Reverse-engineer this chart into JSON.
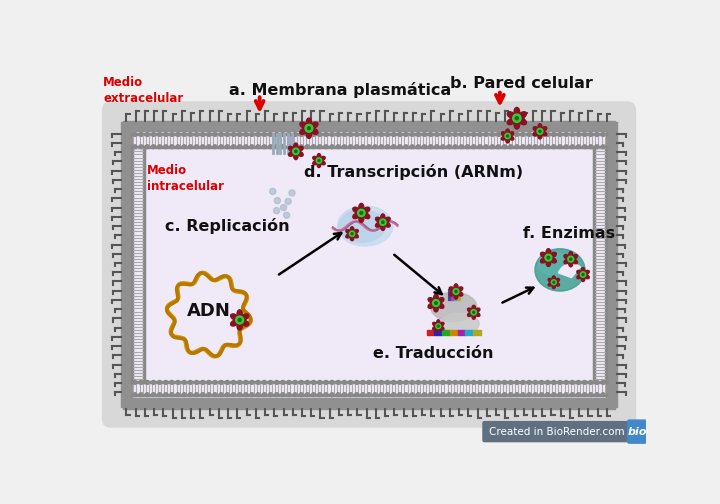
{
  "bg_color": "#f0f0f0",
  "cell_outer_color": "#888888",
  "cell_outer_fill": "#d8d8d8",
  "membrane_color": "#999999",
  "phospholipid_color": "#aaaaaa",
  "inner_cell_fill": "#f0eaf8",
  "inner_border_color": "#88bb88",
  "text_medio_extra": "Medio\nextracelular",
  "text_medio_intra": "Medio\nintracelular",
  "label_a": "a. Membrana plasmática",
  "label_b": "b. Pared celular",
  "label_c": "c. Replicación",
  "label_d": "d. Transcripción (ARNm)",
  "label_e": "e. Traducción",
  "label_f": "f. Enzimas",
  "label_adn": "ADN",
  "red_color": "#dd0000",
  "dark_red_color": "#881122",
  "green_color": "#33cc33",
  "teal_color": "#3a9d8f",
  "gold_color": "#cc9900",
  "gold_color2": "#b87700",
  "arrow_color": "#111111",
  "biorrender_text": "Created in BioRender.com",
  "biorrender_bg": "#607080",
  "biorrender_bio_bg": "#4488cc"
}
